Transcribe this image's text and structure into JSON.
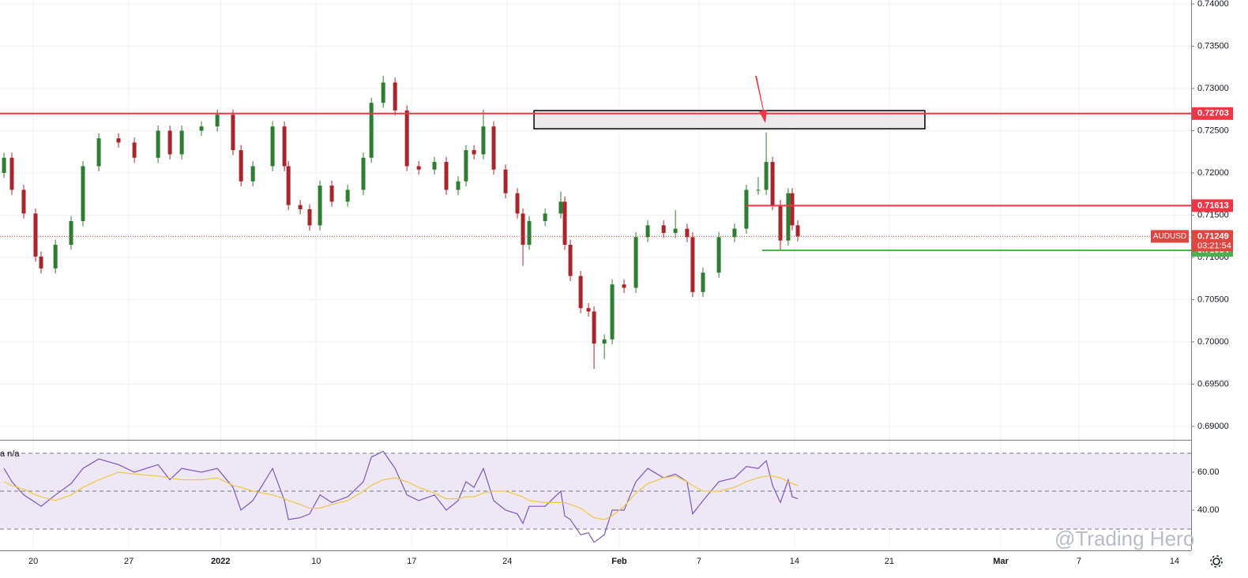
{
  "chart_data": [
    {
      "type": "candlestick",
      "up_color": "#2e7d32",
      "down_color": "#a8262b",
      "grid": true,
      "xlim": [
        -1.74,
        60.58
      ],
      "xticks": [
        {
          "value": 0,
          "label": "20"
        },
        {
          "value": 5,
          "label": "27"
        },
        {
          "value": 9.8,
          "label": "2022"
        },
        {
          "value": 14.8,
          "label": "10"
        },
        {
          "value": 19.8,
          "label": "17"
        },
        {
          "value": 24.8,
          "label": "24"
        },
        {
          "value": 30.66,
          "label": "Feb"
        },
        {
          "value": 34.83,
          "label": "7"
        },
        {
          "value": 39.83,
          "label": "14"
        },
        {
          "value": 44.79,
          "label": "21"
        },
        {
          "value": 50.62,
          "label": "Mar"
        },
        {
          "value": 54.71,
          "label": "7"
        },
        {
          "value": 59.71,
          "label": "14"
        }
      ],
      "ylim": [
        0.68841,
        0.74047
      ],
      "yticks": [
        {
          "value": 0.69,
          "label": "0.69000"
        },
        {
          "value": 0.695,
          "label": "0.69500"
        },
        {
          "value": 0.7,
          "label": "0.70000"
        },
        {
          "value": 0.705,
          "label": "0.70500"
        },
        {
          "value": 0.71,
          "label": "0.71000"
        },
        {
          "value": 0.715,
          "label": "0.71500"
        },
        {
          "value": 0.72,
          "label": "0.72000"
        },
        {
          "value": 0.725,
          "label": "0.72500"
        },
        {
          "value": 0.73,
          "label": "0.73000"
        },
        {
          "value": 0.735,
          "label": "0.73500"
        },
        {
          "value": 0.74,
          "label": "0.74000"
        }
      ],
      "x": [
        -1.53,
        -1.12,
        -0.5,
        0.12,
        0.41,
        1.16,
        1.98,
        2.6,
        3.43,
        4.46,
        5.29,
        6.53,
        7.15,
        7.77,
        8.8,
        9.63,
        10.45,
        10.87,
        11.49,
        12.52,
        13.14,
        13.35,
        13.97,
        14.46,
        15.0,
        15.62,
        16.45,
        17.27,
        17.69,
        18.31,
        18.93,
        19.55,
        20.17,
        20.99,
        21.61,
        22.23,
        22.64,
        23.06,
        23.55,
        24.09,
        24.71,
        25.33,
        25.62,
        25.95,
        26.78,
        27.6,
        27.81,
        28.1,
        28.64,
        29.05,
        29.34,
        29.88,
        30.29,
        30.91,
        31.53,
        32.15,
        32.98,
        33.6,
        34.21,
        34.5,
        35.04,
        35.87,
        36.69,
        37.31,
        37.93,
        38.35,
        38.68,
        39.09,
        39.5,
        39.71,
        40.0
      ],
      "open": [
        0.72,
        0.7218,
        0.718,
        0.7152,
        0.7101,
        0.7087,
        0.7115,
        0.7143,
        0.7208,
        0.7241,
        0.7236,
        0.7218,
        0.725,
        0.7222,
        0.725,
        0.7255,
        0.7269,
        0.7227,
        0.719,
        0.7208,
        0.7255,
        0.7208,
        0.7162,
        0.7157,
        0.7138,
        0.7185,
        0.7166,
        0.718,
        0.7218,
        0.7283,
        0.7307,
        0.7274,
        0.7208,
        0.7204,
        0.7213,
        0.718,
        0.719,
        0.7227,
        0.7222,
        0.7255,
        0.7204,
        0.7176,
        0.7152,
        0.7115,
        0.7143,
        0.7152,
        0.7166,
        0.7115,
        0.7078,
        0.704,
        0.7036,
        0.6998,
        0.7003,
        0.7068,
        0.7064,
        0.7124,
        0.7138,
        0.7129,
        0.7134,
        0.7124,
        0.7059,
        0.7082,
        0.7124,
        0.7134,
        0.718,
        0.718,
        0.7213,
        0.7162,
        0.712,
        0.7176,
        0.7138
      ],
      "high": [
        0.7224,
        0.7224,
        0.7186,
        0.7158,
        0.7107,
        0.7121,
        0.7149,
        0.7214,
        0.7247,
        0.7247,
        0.7242,
        0.7256,
        0.7256,
        0.7256,
        0.7261,
        0.7275,
        0.7275,
        0.7233,
        0.7214,
        0.7261,
        0.7261,
        0.7214,
        0.7168,
        0.7163,
        0.7191,
        0.7191,
        0.7186,
        0.7224,
        0.7289,
        0.7315,
        0.7313,
        0.728,
        0.7214,
        0.7219,
        0.7219,
        0.7196,
        0.7233,
        0.7233,
        0.7275,
        0.7261,
        0.721,
        0.7182,
        0.7158,
        0.7149,
        0.7158,
        0.7178,
        0.7172,
        0.7121,
        0.7084,
        0.7046,
        0.7042,
        0.7009,
        0.7074,
        0.7074,
        0.713,
        0.7144,
        0.7144,
        0.7156,
        0.714,
        0.713,
        0.7088,
        0.713,
        0.714,
        0.7186,
        0.7195,
        0.7248,
        0.7219,
        0.7168,
        0.7182,
        0.7182,
        0.7144
      ],
      "low": [
        0.7194,
        0.7174,
        0.7146,
        0.7095,
        0.7081,
        0.7081,
        0.7109,
        0.7137,
        0.7202,
        0.723,
        0.7212,
        0.7212,
        0.7216,
        0.7216,
        0.7244,
        0.7249,
        0.7221,
        0.7184,
        0.7184,
        0.7202,
        0.7202,
        0.7156,
        0.7151,
        0.7132,
        0.7132,
        0.716,
        0.716,
        0.7174,
        0.7212,
        0.7277,
        0.7268,
        0.7202,
        0.7198,
        0.7198,
        0.7174,
        0.7174,
        0.7184,
        0.7216,
        0.7216,
        0.7198,
        0.717,
        0.7146,
        0.709,
        0.7109,
        0.7137,
        0.7146,
        0.7109,
        0.7072,
        0.7034,
        0.703,
        0.6968,
        0.698,
        0.6997,
        0.7058,
        0.7058,
        0.7118,
        0.7123,
        0.7123,
        0.7118,
        0.7053,
        0.7053,
        0.7076,
        0.7118,
        0.7128,
        0.7174,
        0.7174,
        0.7156,
        0.7108,
        0.7114,
        0.7132,
        0.7119
      ],
      "close": [
        0.7218,
        0.718,
        0.7152,
        0.7101,
        0.7087,
        0.7115,
        0.7143,
        0.7208,
        0.7241,
        0.7236,
        0.7218,
        0.725,
        0.7222,
        0.725,
        0.7255,
        0.7269,
        0.7227,
        0.719,
        0.7208,
        0.7255,
        0.7208,
        0.7162,
        0.7157,
        0.7138,
        0.7185,
        0.7166,
        0.718,
        0.7218,
        0.7283,
        0.7307,
        0.7274,
        0.7208,
        0.7204,
        0.7213,
        0.718,
        0.719,
        0.7227,
        0.7222,
        0.7255,
        0.7204,
        0.7176,
        0.7152,
        0.7115,
        0.7143,
        0.7152,
        0.7166,
        0.7115,
        0.7078,
        0.704,
        0.7036,
        0.6998,
        0.7003,
        0.7068,
        0.7064,
        0.7124,
        0.7138,
        0.7129,
        0.7134,
        0.7124,
        0.7059,
        0.7082,
        0.7124,
        0.7134,
        0.718,
        0.718,
        0.7213,
        0.7162,
        0.712,
        0.7176,
        0.7138,
        0.7125
      ],
      "levels": [
        {
          "value": 0.72703,
          "color": "#f23645"
        },
        {
          "value": 0.71613,
          "color": "#f23645",
          "from": 37.31
        },
        {
          "value": 0.71084,
          "color": "#4caf50",
          "from": 38.14
        }
      ],
      "zone": {
        "x": [
          26.2,
          46.65
        ],
        "y": [
          0.72523,
          0.72738
        ]
      },
      "last": {
        "symbol": "AUDUSD",
        "value": 0.71249,
        "countdown": "03:21:54",
        "color": "#e0463f"
      },
      "watermark": "@Trading Hero"
    },
    {
      "type": "line",
      "label": "a n/a",
      "ylim": [
        18.75,
        76.67
      ],
      "yticks": [
        {
          "value": 40,
          "label": "40.00"
        },
        {
          "value": 60,
          "label": "60.00"
        }
      ],
      "levels": [
        30,
        50,
        70
      ],
      "band": [
        30,
        70
      ],
      "band_color": "#ede7f6",
      "series": [
        {
          "color": "#7e57c2",
          "values": [
            62,
            55,
            48,
            44,
            42,
            48,
            54,
            62,
            67,
            64,
            60,
            64,
            56,
            62,
            60,
            62,
            52,
            40,
            45,
            62,
            45,
            35,
            36,
            38,
            48,
            44,
            47,
            55,
            68,
            71,
            62,
            48,
            45,
            48,
            40,
            45,
            55,
            52,
            62,
            45,
            40,
            38,
            33,
            42,
            42,
            50,
            37,
            35,
            27,
            28,
            23,
            27,
            40,
            40,
            55,
            62,
            57,
            59,
            55,
            38,
            45,
            55,
            57,
            63,
            62,
            66,
            53,
            44,
            56,
            47,
            46
          ]
        },
        {
          "color": "#f2c744",
          "values": [
            55,
            53,
            51,
            48,
            47,
            45,
            48,
            52,
            56,
            60,
            59,
            58,
            57,
            56,
            56,
            57,
            53,
            52,
            50,
            48,
            46,
            45,
            43,
            41,
            41,
            43,
            45,
            50,
            53,
            56,
            57,
            55,
            52,
            49,
            46,
            46,
            47,
            47,
            49,
            50,
            50,
            48,
            47,
            45,
            44,
            44,
            44,
            43,
            41,
            38,
            36,
            35,
            37,
            42,
            49,
            54,
            57,
            58,
            55,
            53,
            50,
            50,
            52,
            55,
            57,
            58,
            58,
            57,
            55,
            54,
            53
          ]
        }
      ]
    }
  ]
}
